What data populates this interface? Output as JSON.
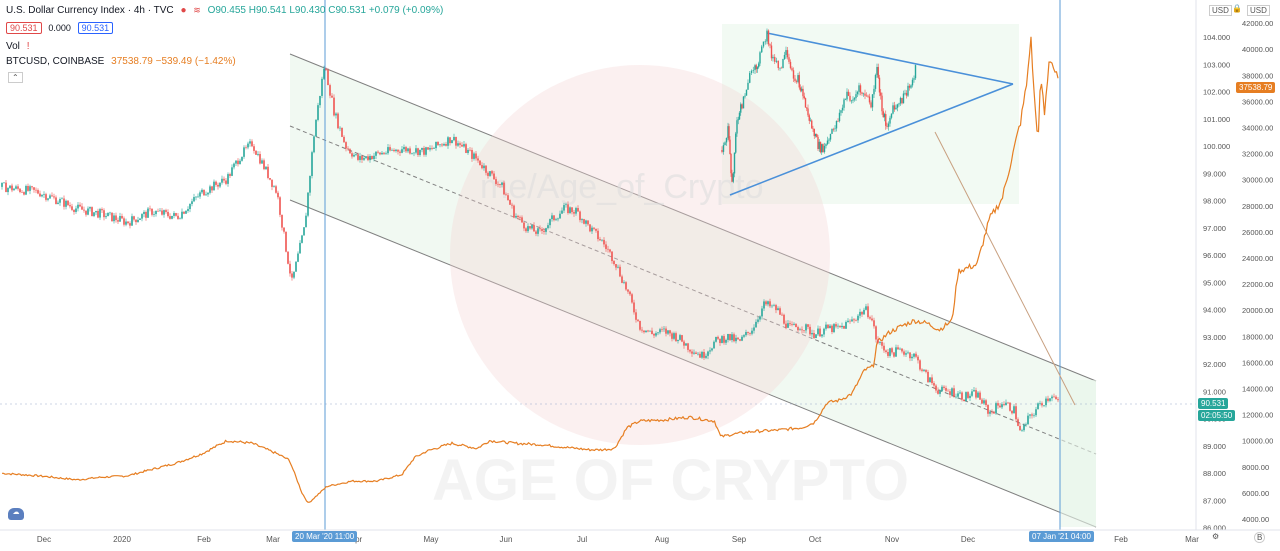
{
  "header": {
    "dxy_title": "U.S. Dollar Currency Index · 4h · TVC",
    "ohlc": "O90.455 H90.541 L90.430 C90.531 +0.079 (+0.09%)",
    "bid": "90.531",
    "spread": "0.000",
    "ask": "90.531",
    "vol_label": "Vol",
    "btc_title": "BTCUSD, COINBASE",
    "btc_values": "37538.79 −539.49 (−1.42%)"
  },
  "currency_left": "USD",
  "currency_right": "USD",
  "watermark": "AGE OF CRYPTO",
  "watermark_url": "me/Age_of_Crypto",
  "colors": {
    "dxy_up": "#26a69a",
    "dxy_down": "#ef5350",
    "btc": "#e67e22",
    "channel_fill": "#e8f5e9",
    "trend_line": "#4a90d9",
    "vline": "#5b9bd5"
  },
  "chart_data": {
    "type": "candlestick+line",
    "x_labels": [
      "Dec",
      "2020",
      "Feb",
      "Mar",
      "Apr",
      "May",
      "Jun",
      "Jul",
      "Aug",
      "Sep",
      "Oct",
      "Nov",
      "Dec",
      "Jan",
      "Feb",
      "Mar"
    ],
    "date_markers": [
      "20 Mar '20  11:00",
      "07 Jan '21  04:00"
    ],
    "dxy_axis": {
      "ticks": [
        "104.000",
        "103.000",
        "102.000",
        "101.000",
        "100.000",
        "99.000",
        "98.000",
        "97.000",
        "96.000",
        "95.000",
        "94.000",
        "93.000",
        "92.000",
        "91.000",
        "90.000",
        "89.000",
        "88.000",
        "87.000",
        "86.000"
      ],
      "range": [
        86,
        104.5
      ]
    },
    "btc_axis": {
      "ticks": [
        "42000.00",
        "40000.00",
        "38000.00",
        "36000.00",
        "34000.00",
        "32000.00",
        "30000.00",
        "28000.00",
        "26000.00",
        "24000.00",
        "22000.00",
        "20000.00",
        "18000.00",
        "16000.00",
        "14000.00",
        "12000.00",
        "10000.00",
        "8000.00",
        "6000.00",
        "4000.00"
      ],
      "range": [
        3500,
        43500
      ]
    },
    "last_dxy": "90.531",
    "countdown": "02:05:50",
    "last_btc": "37538.79",
    "dxy_path": [
      [
        0,
        98.5
      ],
      [
        3,
        98.3
      ],
      [
        6,
        97.7
      ],
      [
        8,
        97.5
      ],
      [
        10,
        97.2
      ],
      [
        12,
        97.6
      ],
      [
        14,
        97.4
      ],
      [
        16,
        98.3
      ],
      [
        18,
        98.8
      ],
      [
        19,
        99.6
      ],
      [
        20,
        100.1
      ],
      [
        21,
        99.2
      ],
      [
        22,
        98.3
      ],
      [
        22.8,
        96.0
      ],
      [
        23.2,
        95.0
      ],
      [
        24.2,
        97.0
      ],
      [
        25,
        100.6
      ],
      [
        25.8,
        103.0
      ],
      [
        26.6,
        101.2
      ],
      [
        27.5,
        100.0
      ],
      [
        28.5,
        99.5
      ],
      [
        30,
        99.7
      ],
      [
        32,
        99.9
      ],
      [
        34,
        99.8
      ],
      [
        36,
        100.3
      ],
      [
        38,
        99.5
      ],
      [
        40,
        98.5
      ],
      [
        41,
        97.5
      ],
      [
        42,
        97.0
      ],
      [
        43,
        96.8
      ],
      [
        44,
        97.3
      ],
      [
        45,
        97.7
      ],
      [
        46,
        97.6
      ],
      [
        47,
        97.0
      ],
      [
        48,
        96.5
      ],
      [
        49,
        95.8
      ],
      [
        50,
        94.7
      ],
      [
        51,
        93.4
      ],
      [
        52,
        93.1
      ],
      [
        53,
        93.2
      ],
      [
        54,
        93.0
      ],
      [
        55,
        92.6
      ],
      [
        56,
        92.3
      ],
      [
        57,
        92.8
      ],
      [
        58,
        93.0
      ],
      [
        59,
        92.8
      ],
      [
        60,
        93.3
      ],
      [
        61,
        94.2
      ],
      [
        62,
        94.0
      ],
      [
        63,
        93.3
      ],
      [
        64,
        93.4
      ],
      [
        65,
        93.1
      ],
      [
        66,
        93.3
      ],
      [
        67,
        93.3
      ],
      [
        68,
        93.6
      ],
      [
        69,
        94.0
      ],
      [
        69.5,
        93.8
      ],
      [
        70,
        92.8
      ],
      [
        71,
        92.4
      ],
      [
        72,
        92.5
      ],
      [
        73,
        92.3
      ],
      [
        74,
        91.5
      ],
      [
        75,
        91.0
      ],
      [
        76,
        91.0
      ],
      [
        77,
        90.8
      ],
      [
        78,
        90.9
      ],
      [
        79,
        90.2
      ],
      [
        80,
        90.6
      ],
      [
        81,
        90.3
      ],
      [
        81.5,
        89.4
      ],
      [
        82,
        89.9
      ],
      [
        83,
        90.5
      ],
      [
        84,
        90.9
      ],
      [
        84.5,
        90.53
      ]
    ],
    "btc_path": [
      [
        0,
        7500
      ],
      [
        3,
        7300
      ],
      [
        6,
        7000
      ],
      [
        8,
        7200
      ],
      [
        10,
        7300
      ],
      [
        12,
        7800
      ],
      [
        14,
        8300
      ],
      [
        16,
        9000
      ],
      [
        18,
        10000
      ],
      [
        20,
        9800
      ],
      [
        22,
        9000
      ],
      [
        23,
        8500
      ],
      [
        24,
        6000
      ],
      [
        24.5,
        5200
      ],
      [
        26,
        6500
      ],
      [
        28,
        6900
      ],
      [
        30,
        6900
      ],
      [
        32,
        7400
      ],
      [
        33,
        8700
      ],
      [
        34,
        9200
      ],
      [
        36,
        9800
      ],
      [
        38,
        9400
      ],
      [
        39,
        10000
      ],
      [
        41,
        9800
      ],
      [
        43,
        9700
      ],
      [
        45,
        9500
      ],
      [
        47,
        9300
      ],
      [
        48,
        9300
      ],
      [
        49,
        9400
      ],
      [
        50,
        11000
      ],
      [
        51,
        11500
      ],
      [
        53,
        11600
      ],
      [
        55,
        11800
      ],
      [
        57,
        11500
      ],
      [
        57.5,
        10300
      ],
      [
        58.5,
        10500
      ],
      [
        60,
        10700
      ],
      [
        62,
        10800
      ],
      [
        64,
        11000
      ],
      [
        65,
        11400
      ],
      [
        66,
        12900
      ],
      [
        67,
        13100
      ],
      [
        68,
        13600
      ],
      [
        69,
        15400
      ],
      [
        69.7,
        15700
      ],
      [
        70,
        17500
      ],
      [
        71,
        18300
      ],
      [
        72,
        18800
      ],
      [
        73,
        19200
      ],
      [
        74,
        19000
      ],
      [
        75,
        18500
      ],
      [
        76,
        19200
      ],
      [
        76.5,
        23000
      ],
      [
        78,
        23500
      ],
      [
        79,
        27000
      ],
      [
        80,
        28500
      ],
      [
        80.5,
        30500
      ],
      [
        81.5,
        34500
      ],
      [
        82,
        37500
      ],
      [
        82.3,
        41000
      ],
      [
        82.6,
        36000
      ],
      [
        82.9,
        33000
      ],
      [
        83.1,
        38000
      ],
      [
        83.4,
        35000
      ],
      [
        83.8,
        39500
      ],
      [
        84.5,
        37538
      ]
    ]
  }
}
